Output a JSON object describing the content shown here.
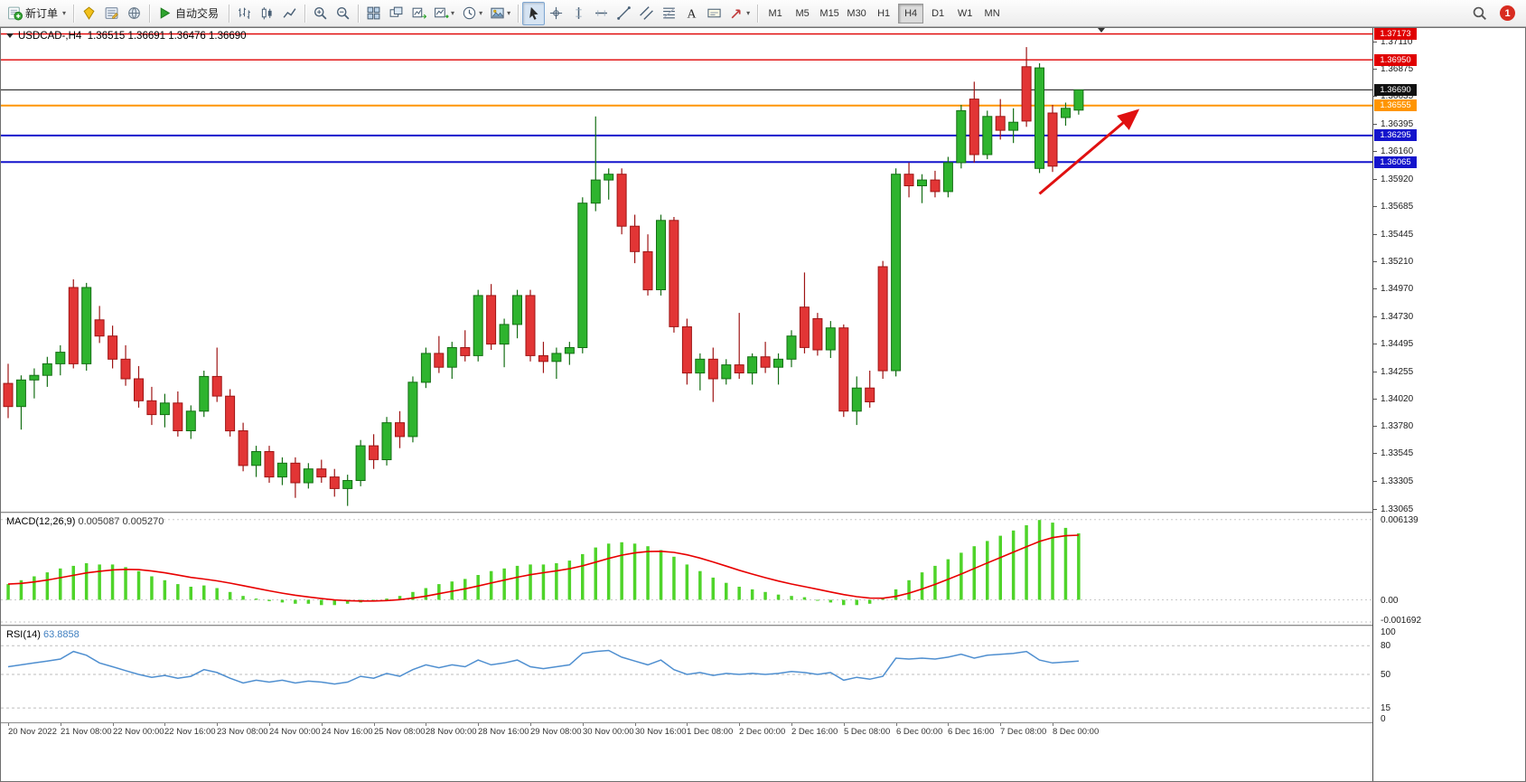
{
  "toolbar": {
    "new_order_label": "新订单",
    "autotrade_label": "自动交易",
    "timeframes": [
      "M1",
      "M5",
      "M15",
      "M30",
      "H1",
      "H4",
      "D1",
      "W1",
      "MN"
    ],
    "active_timeframe": "H4",
    "active_tool": "cursor",
    "notification_count": "1",
    "groups": [
      {
        "items": [
          {
            "name": "new-order-button",
            "icon": "neworder",
            "label_key": "new_order_label",
            "caret": true
          }
        ]
      },
      {
        "items": [
          {
            "name": "mql5-community-icon",
            "icon": "gem"
          },
          {
            "name": "metaeditor-icon",
            "icon": "editor"
          },
          {
            "name": "help-icon",
            "icon": "globe"
          }
        ]
      },
      {
        "items": [
          {
            "name": "autotrade-button",
            "icon": "play",
            "label_key": "autotrade_label"
          }
        ]
      },
      {
        "items": [
          {
            "name": "bar-chart-icon",
            "icon": "bars"
          },
          {
            "name": "candlestick-chart-icon",
            "icon": "candle"
          },
          {
            "name": "line-chart-icon",
            "icon": "linechart"
          }
        ]
      },
      {
        "items": [
          {
            "name": "zoom-in-icon",
            "icon": "zoomin"
          },
          {
            "name": "zoom-out-icon",
            "icon": "zoomout"
          }
        ]
      },
      {
        "items": [
          {
            "name": "tile-windows-icon",
            "icon": "tile"
          },
          {
            "name": "cascade-windows-icon",
            "icon": "cascade"
          },
          {
            "name": "chart-forward-icon",
            "icon": "stepchart"
          },
          {
            "name": "new-chart-button",
            "icon": "newchart",
            "caret": true
          },
          {
            "name": "periods-button",
            "icon": "clock",
            "caret": true
          },
          {
            "name": "save-picture-button",
            "icon": "export",
            "caret": true
          }
        ]
      },
      {
        "items": [
          {
            "name": "cursor-icon",
            "icon": "cursor",
            "active": true
          },
          {
            "name": "crosshair-icon",
            "icon": "crosshair"
          },
          {
            "name": "vertical-line-icon",
            "icon": "vline"
          },
          {
            "name": "horizontal-line-icon",
            "icon": "hline"
          },
          {
            "name": "trendline-icon",
            "icon": "tline"
          },
          {
            "name": "equidistant-channel-icon",
            "icon": "channel"
          },
          {
            "name": "fibonacci-icon",
            "icon": "fibo"
          },
          {
            "name": "text-icon",
            "icon": "textA"
          },
          {
            "name": "text-label-icon",
            "icon": "labelT"
          },
          {
            "name": "arrows-button",
            "icon": "arrows",
            "caret": true
          }
        ]
      }
    ]
  },
  "chart": {
    "title": "USDCAD-,H4",
    "ohlc_text": "1.36515 1.36691 1.36476 1.36690"
  },
  "chart_data": {
    "type": "candlestick",
    "symbol": "USDCAD-",
    "timeframe": "H4",
    "current_ohlc": {
      "open": 1.36515,
      "high": 1.36691,
      "low": 1.36476,
      "close": 1.3669
    },
    "price_range": {
      "min": 1.3304,
      "max": 1.37225
    },
    "price_ticks": [
      "1.37110",
      "1.36875",
      "1.36635",
      "1.36395",
      "1.36160",
      "1.35920",
      "1.35685",
      "1.35445",
      "1.35210",
      "1.34970",
      "1.34730",
      "1.34495",
      "1.34255",
      "1.34020",
      "1.33780",
      "1.33545",
      "1.33305",
      "1.33065"
    ],
    "hlines": [
      {
        "price": 1.37173,
        "label": "1.37173",
        "color": "#e00000",
        "width": 1.4
      },
      {
        "price": 1.3695,
        "label": "1.36950",
        "color": "#e00000",
        "width": 1.4
      },
      {
        "price": 1.3669,
        "label": "1.36690",
        "color": "#111111",
        "width": 1
      },
      {
        "price": 1.36555,
        "label": "1.36555",
        "color": "#ff9500",
        "width": 2
      },
      {
        "price": 1.36295,
        "label": "1.36295",
        "color": "#1414cc",
        "width": 2
      },
      {
        "price": 1.36065,
        "label": "1.36065",
        "color": "#1414cc",
        "width": 2
      }
    ],
    "time_labels": [
      "20 Nov 2022",
      "21 Nov 08:00",
      "22 Nov 00:00",
      "22 Nov 16:00",
      "23 Nov 08:00",
      "24 Nov 00:00",
      "24 Nov 16:00",
      "25 Nov 08:00",
      "28 Nov 00:00",
      "28 Nov 16:00",
      "29 Nov 08:00",
      "30 Nov 00:00",
      "30 Nov 16:00",
      "1 Dec 08:00",
      "2 Dec 00:00",
      "2 Dec 16:00",
      "5 Dec 08:00",
      "6 Dec 00:00",
      "6 Dec 16:00",
      "7 Dec 08:00",
      "8 Dec 00:00"
    ],
    "candles": [
      [
        1.3415,
        1.3432,
        1.3385,
        1.3395
      ],
      [
        1.3395,
        1.3422,
        1.3375,
        1.3418
      ],
      [
        1.3418,
        1.3428,
        1.3402,
        1.3422
      ],
      [
        1.3422,
        1.3438,
        1.3412,
        1.3432
      ],
      [
        1.3432,
        1.3448,
        1.3422,
        1.3442
      ],
      [
        1.3498,
        1.3505,
        1.3428,
        1.3432
      ],
      [
        1.3432,
        1.3502,
        1.3426,
        1.3498
      ],
      [
        1.347,
        1.3482,
        1.345,
        1.3456
      ],
      [
        1.3456,
        1.3465,
        1.3428,
        1.3436
      ],
      [
        1.3436,
        1.3448,
        1.3413,
        1.3419
      ],
      [
        1.3419,
        1.343,
        1.3394,
        1.34
      ],
      [
        1.34,
        1.3412,
        1.3379,
        1.3388
      ],
      [
        1.3388,
        1.3406,
        1.3377,
        1.3398
      ],
      [
        1.3398,
        1.3408,
        1.3369,
        1.3374
      ],
      [
        1.3374,
        1.3396,
        1.3367,
        1.3391
      ],
      [
        1.3391,
        1.3426,
        1.3386,
        1.3421
      ],
      [
        1.3421,
        1.3446,
        1.3399,
        1.3404
      ],
      [
        1.3404,
        1.341,
        1.3369,
        1.3374
      ],
      [
        1.3374,
        1.3381,
        1.3339,
        1.3344
      ],
      [
        1.3344,
        1.3361,
        1.3334,
        1.3356
      ],
      [
        1.3356,
        1.3361,
        1.3329,
        1.3334
      ],
      [
        1.3334,
        1.3351,
        1.3327,
        1.3346
      ],
      [
        1.3346,
        1.3351,
        1.3316,
        1.3329
      ],
      [
        1.3329,
        1.3346,
        1.3324,
        1.3341
      ],
      [
        1.3341,
        1.3349,
        1.3329,
        1.3334
      ],
      [
        1.3334,
        1.3341,
        1.3317,
        1.3324
      ],
      [
        1.3324,
        1.3336,
        1.3309,
        1.3331
      ],
      [
        1.3331,
        1.3366,
        1.3326,
        1.3361
      ],
      [
        1.3361,
        1.3371,
        1.3341,
        1.3349
      ],
      [
        1.3349,
        1.3386,
        1.3344,
        1.3381
      ],
      [
        1.3381,
        1.3391,
        1.3359,
        1.3369
      ],
      [
        1.3369,
        1.3421,
        1.3364,
        1.3416
      ],
      [
        1.3416,
        1.3446,
        1.3411,
        1.3441
      ],
      [
        1.3441,
        1.3456,
        1.3424,
        1.3429
      ],
      [
        1.3429,
        1.3451,
        1.3419,
        1.3446
      ],
      [
        1.3446,
        1.3461,
        1.3434,
        1.3439
      ],
      [
        1.3439,
        1.3496,
        1.3434,
        1.3491
      ],
      [
        1.3491,
        1.3501,
        1.3444,
        1.3449
      ],
      [
        1.3449,
        1.3471,
        1.3429,
        1.3466
      ],
      [
        1.3466,
        1.3496,
        1.3454,
        1.3491
      ],
      [
        1.3491,
        1.3496,
        1.3434,
        1.3439
      ],
      [
        1.3439,
        1.3451,
        1.3424,
        1.3434
      ],
      [
        1.3434,
        1.3446,
        1.3419,
        1.3441
      ],
      [
        1.3441,
        1.3451,
        1.3431,
        1.3446
      ],
      [
        1.3446,
        1.3576,
        1.3441,
        1.3571
      ],
      [
        1.3571,
        1.3646,
        1.3564,
        1.3591
      ],
      [
        1.3591,
        1.3601,
        1.3574,
        1.3596
      ],
      [
        1.3596,
        1.3601,
        1.3544,
        1.3551
      ],
      [
        1.3551,
        1.3561,
        1.3519,
        1.3529
      ],
      [
        1.3529,
        1.3544,
        1.3491,
        1.3496
      ],
      [
        1.3496,
        1.3561,
        1.3491,
        1.3556
      ],
      [
        1.3556,
        1.3559,
        1.3459,
        1.3464
      ],
      [
        1.3464,
        1.3471,
        1.3414,
        1.3424
      ],
      [
        1.3424,
        1.3441,
        1.3409,
        1.3436
      ],
      [
        1.3436,
        1.3446,
        1.3399,
        1.3419
      ],
      [
        1.3419,
        1.3436,
        1.3414,
        1.3431
      ],
      [
        1.3431,
        1.3476,
        1.3419,
        1.3424
      ],
      [
        1.3424,
        1.3441,
        1.3414,
        1.3438
      ],
      [
        1.3438,
        1.3451,
        1.3424,
        1.3429
      ],
      [
        1.3429,
        1.3441,
        1.3414,
        1.3436
      ],
      [
        1.3436,
        1.3461,
        1.3429,
        1.3456
      ],
      [
        1.3481,
        1.3511,
        1.3441,
        1.3446
      ],
      [
        1.3471,
        1.3476,
        1.3439,
        1.3444
      ],
      [
        1.3444,
        1.3469,
        1.3437,
        1.3463
      ],
      [
        1.3463,
        1.3466,
        1.3386,
        1.3391
      ],
      [
        1.3391,
        1.3421,
        1.3379,
        1.3411
      ],
      [
        1.3411,
        1.3426,
        1.3394,
        1.3399
      ],
      [
        1.3516,
        1.3521,
        1.3419,
        1.3426
      ],
      [
        1.3426,
        1.3601,
        1.3421,
        1.3596
      ],
      [
        1.3596,
        1.3606,
        1.3576,
        1.3586
      ],
      [
        1.3586,
        1.3596,
        1.3571,
        1.3591
      ],
      [
        1.3591,
        1.3599,
        1.3576,
        1.3581
      ],
      [
        1.3581,
        1.3611,
        1.3576,
        1.3606
      ],
      [
        1.3606,
        1.3656,
        1.3601,
        1.3651
      ],
      [
        1.3661,
        1.3676,
        1.3606,
        1.3613
      ],
      [
        1.3613,
        1.3651,
        1.3609,
        1.3646
      ],
      [
        1.3646,
        1.3661,
        1.3626,
        1.3634
      ],
      [
        1.3634,
        1.3653,
        1.3623,
        1.3641
      ],
      [
        1.3689,
        1.3706,
        1.3637,
        1.3642
      ],
      [
        1.3601,
        1.3692,
        1.3597,
        1.3688
      ],
      [
        1.3649,
        1.3656,
        1.3598,
        1.3603
      ],
      [
        1.3645,
        1.3658,
        1.3638,
        1.3653
      ],
      [
        1.36515,
        1.36691,
        1.36476,
        1.3669
      ]
    ],
    "colors": {
      "bull": "#2eb42e",
      "bull_border": "#146e14",
      "bear": "#e23535",
      "bear_border": "#9e1414",
      "macd_bar": "#4fd42a",
      "macd_signal": "#e80000",
      "rsi_line": "#4f8fd0",
      "arrow": "#e01010"
    },
    "macd": {
      "label": "MACD(12,26,9)",
      "value_main": "0.005087",
      "value_signal": "0.005270",
      "scale": {
        "min": -0.0019,
        "max": 0.0066
      },
      "axis": [
        {
          "text": "0.006139",
          "value": 0.006139
        },
        {
          "text": "0.00",
          "value": 0
        },
        {
          "text": "-0.001692",
          "value": -0.001692
        }
      ],
      "histogram": [
        0.0012,
        0.0015,
        0.0018,
        0.0021,
        0.0024,
        0.0026,
        0.0028,
        0.0027,
        0.0027,
        0.0025,
        0.0022,
        0.0018,
        0.0015,
        0.0012,
        0.001,
        0.0011,
        0.0009,
        0.0006,
        0.0003,
        0.0001,
        -0.0001,
        -0.0002,
        -0.0003,
        -0.0003,
        -0.0004,
        -0.0004,
        -0.0003,
        -0.0002,
        -0.0001,
        0.0001,
        0.0003,
        0.0006,
        0.0009,
        0.0012,
        0.0014,
        0.0016,
        0.0019,
        0.0022,
        0.0024,
        0.0026,
        0.0027,
        0.0027,
        0.0028,
        0.003,
        0.0035,
        0.004,
        0.0043,
        0.0044,
        0.0043,
        0.0041,
        0.0038,
        0.0033,
        0.0027,
        0.0022,
        0.0017,
        0.0013,
        0.001,
        0.0008,
        0.0006,
        0.0004,
        0.0003,
        0.0002,
        0.0,
        -0.0002,
        -0.0004,
        -0.0004,
        -0.0003,
        0.0001,
        0.0008,
        0.0015,
        0.0021,
        0.0026,
        0.0031,
        0.0036,
        0.0041,
        0.0045,
        0.0049,
        0.0053,
        0.0057,
        0.0061,
        0.0059,
        0.0055,
        0.005087
      ]
    },
    "rsi": {
      "label": "RSI(14)",
      "value": "63.8858",
      "scale": {
        "min": 0,
        "max": 100
      },
      "axis": [
        {
          "text": "100",
          "value": 100
        },
        {
          "text": "80",
          "value": 80
        },
        {
          "text": "50",
          "value": 50
        },
        {
          "text": "15",
          "value": 15
        },
        {
          "text": "0",
          "value": 0
        }
      ],
      "values": [
        58,
        60,
        62,
        64,
        66,
        74,
        70,
        62,
        58,
        54,
        50,
        47,
        49,
        46,
        48,
        55,
        52,
        46,
        41,
        44,
        42,
        44,
        41,
        43,
        42,
        40,
        42,
        48,
        46,
        51,
        48,
        55,
        60,
        57,
        60,
        58,
        65,
        60,
        62,
        65,
        58,
        56,
        58,
        60,
        72,
        74,
        75,
        68,
        64,
        60,
        65,
        55,
        50,
        52,
        49,
        51,
        50,
        51,
        50,
        51,
        53,
        52,
        50,
        52,
        44,
        47,
        45,
        48,
        67,
        66,
        67,
        66,
        68,
        71,
        67,
        70,
        71,
        72,
        74,
        65,
        62,
        63,
        63.8858
      ]
    },
    "arrow": {
      "from": {
        "candle": 79,
        "price": 1.3579
      },
      "to": {
        "candle": 86.5,
        "price": 1.3651
      },
      "color": "#e01010"
    }
  }
}
